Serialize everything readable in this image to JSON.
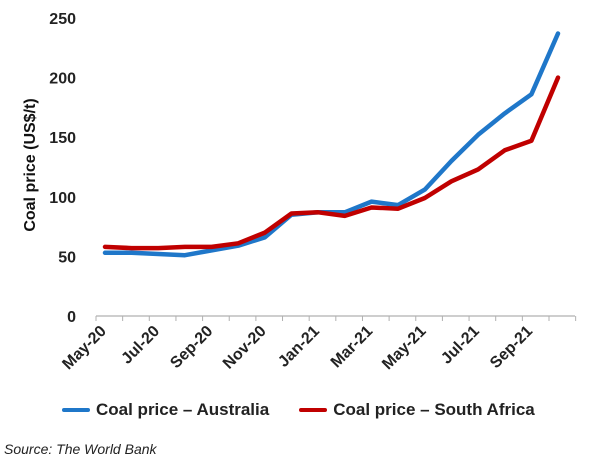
{
  "chart_data": {
    "type": "line",
    "categories": [
      "May-20",
      "Jun-20",
      "Jul-20",
      "Aug-20",
      "Sep-20",
      "Oct-20",
      "Nov-20",
      "Dec-20",
      "Jan-21",
      "Feb-21",
      "Mar-21",
      "Apr-21",
      "May-21",
      "Jun-21",
      "Jul-21",
      "Aug-21",
      "Sep-21",
      "Oct-21"
    ],
    "tick_labels": [
      "May-20",
      "Jul-20",
      "Sep-20",
      "Nov-20",
      "Jan-21",
      "Mar-21",
      "May-21",
      "Jul-21",
      "Sep-21"
    ],
    "series": [
      {
        "name": "Coal price – Australia",
        "color": "#1f77c9",
        "values": [
          53,
          53,
          52,
          51,
          55,
          59,
          66,
          85,
          87,
          87,
          96,
          93,
          106,
          130,
          152,
          170,
          186,
          237
        ]
      },
      {
        "name": "Coal price – South Africa",
        "color": "#c00000",
        "values": [
          58,
          57,
          57,
          58,
          58,
          61,
          70,
          86,
          87,
          84,
          91,
          90,
          99,
          113,
          123,
          139,
          147,
          200
        ]
      }
    ],
    "ylabel": "Coal price (US$/t)",
    "xlabel": "",
    "ylim": [
      0,
      250
    ],
    "yticks": [
      0,
      50,
      100,
      150,
      200,
      250
    ],
    "grid": false,
    "legend_position": "bottom"
  },
  "source": "Source: The World Bank"
}
